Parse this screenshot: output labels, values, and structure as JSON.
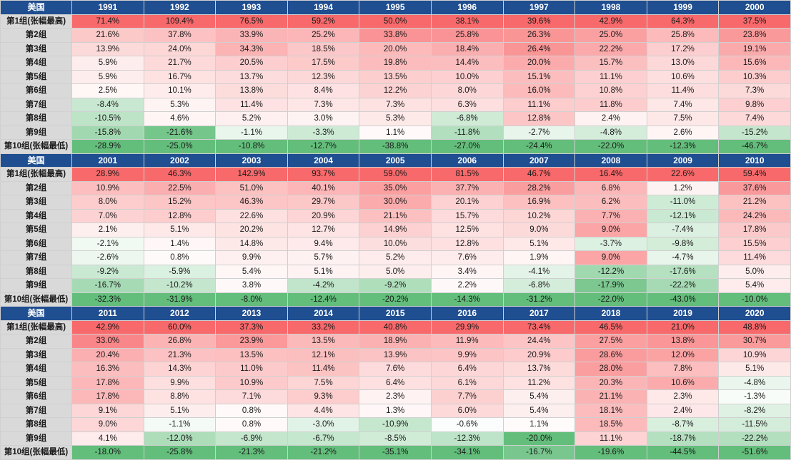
{
  "colors": {
    "header_bg": "#1f4e91",
    "header_text": "#ffffff",
    "row_label_bg": "#d9d9d9",
    "positive_max": "#f8696b",
    "neutral": "#ffffff",
    "negative_max": "#63be7b"
  },
  "chart_data": {
    "type": "heatmap",
    "title": "",
    "market_label": "美国",
    "row_labels": [
      "第1组(张幅最高)",
      "第2组",
      "第3组",
      "第4组",
      "第5组",
      "第6组",
      "第7组",
      "第8组",
      "第9组",
      "第10组(张幅最低)"
    ],
    "blocks": [
      {
        "years": [
          "1991",
          "1992",
          "1993",
          "1994",
          "1995",
          "1996",
          "1997",
          "1998",
          "1999",
          "2000"
        ],
        "values": [
          [
            71.4,
            109.4,
            76.5,
            59.2,
            50.0,
            38.1,
            39.6,
            42.9,
            64.3,
            37.5
          ],
          [
            21.6,
            37.8,
            33.9,
            25.2,
            33.8,
            25.8,
            26.3,
            25.0,
            25.8,
            23.8
          ],
          [
            13.9,
            24.0,
            34.3,
            18.5,
            20.0,
            18.4,
            26.4,
            22.2,
            17.2,
            19.1
          ],
          [
            5.9,
            21.7,
            20.5,
            17.5,
            19.8,
            14.4,
            20.0,
            15.7,
            13.0,
            15.6
          ],
          [
            5.9,
            16.7,
            13.7,
            12.3,
            13.5,
            10.0,
            15.1,
            11.1,
            10.6,
            10.3
          ],
          [
            2.5,
            10.1,
            13.8,
            8.4,
            12.2,
            8.0,
            16.0,
            10.8,
            11.4,
            7.3
          ],
          [
            -8.4,
            5.3,
            11.4,
            7.3,
            7.3,
            6.3,
            11.1,
            11.8,
            7.4,
            9.8
          ],
          [
            -10.5,
            4.6,
            5.2,
            3.0,
            5.3,
            -6.8,
            12.8,
            2.4,
            7.5,
            7.4
          ],
          [
            -15.8,
            -21.6,
            -1.1,
            -3.3,
            1.1,
            -11.8,
            -2.7,
            -4.8,
            2.6,
            -15.2
          ],
          [
            -28.9,
            -25.0,
            -10.8,
            -12.7,
            -38.8,
            -27.0,
            -24.4,
            -22.0,
            -12.3,
            -46.7
          ]
        ]
      },
      {
        "years": [
          "2001",
          "2002",
          "2003",
          "2004",
          "2005",
          "2006",
          "2007",
          "2008",
          "2009",
          "2010"
        ],
        "values": [
          [
            28.9,
            46.3,
            142.9,
            93.7,
            59.0,
            81.5,
            46.7,
            16.4,
            22.6,
            59.4
          ],
          [
            10.9,
            22.5,
            51.0,
            40.1,
            35.0,
            37.7,
            28.2,
            6.8,
            1.2,
            37.6
          ],
          [
            8.0,
            15.2,
            46.3,
            29.7,
            30.0,
            20.1,
            16.9,
            6.2,
            -11.0,
            21.2
          ],
          [
            7.0,
            12.8,
            22.6,
            20.9,
            21.1,
            15.7,
            10.2,
            7.7,
            -12.1,
            24.2
          ],
          [
            2.1,
            5.1,
            20.2,
            12.7,
            14.9,
            12.5,
            9.0,
            9.0,
            -7.4,
            17.8
          ],
          [
            -2.1,
            1.4,
            14.8,
            9.4,
            10.0,
            12.8,
            5.1,
            -3.7,
            -9.8,
            15.5
          ],
          [
            -2.6,
            0.8,
            9.9,
            5.7,
            5.2,
            7.6,
            1.9,
            9.0,
            -4.7,
            11.4
          ],
          [
            -9.2,
            -5.9,
            5.4,
            5.1,
            5.0,
            3.4,
            -4.1,
            -12.2,
            -17.6,
            5.0
          ],
          [
            -16.7,
            -10.2,
            3.8,
            -4.2,
            -9.2,
            2.2,
            -6.8,
            -17.9,
            -22.2,
            5.4
          ],
          [
            -32.3,
            -31.9,
            -8.0,
            -12.4,
            -20.2,
            -14.3,
            -31.2,
            -22.0,
            -43.0,
            -10.0
          ]
        ]
      },
      {
        "years": [
          "2011",
          "2012",
          "2013",
          "2014",
          "2015",
          "2016",
          "2017",
          "2018",
          "2019",
          "2020"
        ],
        "values": [
          [
            42.9,
            60.0,
            37.3,
            33.2,
            40.8,
            29.9,
            73.4,
            46.5,
            21.0,
            48.8
          ],
          [
            33.0,
            26.8,
            23.9,
            13.5,
            18.9,
            11.9,
            24.4,
            27.5,
            13.8,
            30.7
          ],
          [
            20.4,
            21.3,
            13.5,
            12.1,
            13.9,
            9.9,
            20.9,
            28.6,
            12.0,
            10.9
          ],
          [
            16.3,
            14.3,
            11.0,
            11.4,
            7.6,
            6.4,
            13.7,
            28.0,
            7.8,
            5.1
          ],
          [
            17.8,
            9.9,
            10.9,
            7.5,
            6.4,
            6.1,
            11.2,
            20.3,
            10.6,
            -4.8
          ],
          [
            17.8,
            8.8,
            7.1,
            9.3,
            2.3,
            7.7,
            5.4,
            21.1,
            2.3,
            -1.3
          ],
          [
            9.1,
            5.1,
            0.8,
            4.4,
            1.3,
            6.0,
            5.4,
            18.1,
            2.4,
            -8.2
          ],
          [
            9.0,
            -1.1,
            0.8,
            -3.0,
            -10.9,
            -0.6,
            1.1,
            18.5,
            -8.7,
            -11.5
          ],
          [
            4.1,
            -12.0,
            -6.9,
            -6.7,
            -8.5,
            -12.3,
            -20.0,
            11.1,
            -18.7,
            -22.2
          ],
          [
            -18.0,
            -25.8,
            -21.3,
            -21.2,
            -35.1,
            -34.1,
            -16.7,
            -19.6,
            -44.5,
            -51.6
          ]
        ]
      }
    ]
  }
}
